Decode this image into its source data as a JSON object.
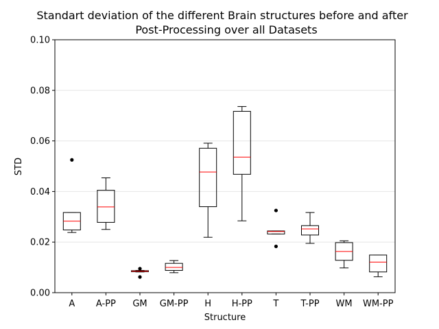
{
  "chart_data": {
    "type": "boxplot",
    "title_lines": [
      "Standart deviation of the different Brain structures before and after",
      "Post-Processing over all Datasets"
    ],
    "xlabel": "Structure",
    "ylabel": "STD",
    "ylim": [
      0.0,
      0.1
    ],
    "yticks": [
      0.0,
      0.02,
      0.04,
      0.06,
      0.08,
      0.1
    ],
    "ytick_labels": [
      "0.00",
      "0.02",
      "0.04",
      "0.06",
      "0.08",
      "0.10"
    ],
    "grid": "horizontal",
    "median_color": "#ff0000",
    "box_color": "#000000",
    "categories": [
      "A",
      "A-PP",
      "GM",
      "GM-PP",
      "H",
      "H-PP",
      "T",
      "T-PP",
      "WM",
      "WM-PP"
    ],
    "boxes": [
      {
        "label": "A",
        "whisker_low": 0.0238,
        "q1": 0.0248,
        "median": 0.0283,
        "q3": 0.0317,
        "whisker_high": 0.0317,
        "outliers": [
          0.0525
        ]
      },
      {
        "label": "A-PP",
        "whisker_low": 0.025,
        "q1": 0.0278,
        "median": 0.0339,
        "q3": 0.0405,
        "whisker_high": 0.0454,
        "outliers": []
      },
      {
        "label": "GM",
        "whisker_low": 0.0082,
        "q1": 0.0083,
        "median": 0.0085,
        "q3": 0.0087,
        "whisker_high": 0.0088,
        "outliers": [
          0.0095,
          0.0062
        ]
      },
      {
        "label": "GM-PP",
        "whisker_low": 0.0079,
        "q1": 0.0088,
        "median": 0.01,
        "q3": 0.0116,
        "whisker_high": 0.0127,
        "outliers": []
      },
      {
        "label": "H",
        "whisker_low": 0.0219,
        "q1": 0.034,
        "median": 0.0477,
        "q3": 0.0571,
        "whisker_high": 0.0591,
        "outliers": []
      },
      {
        "label": "H-PP",
        "whisker_low": 0.0284,
        "q1": 0.0468,
        "median": 0.0536,
        "q3": 0.0717,
        "whisker_high": 0.0736,
        "outliers": []
      },
      {
        "label": "T",
        "whisker_low": 0.0232,
        "q1": 0.0232,
        "median": 0.0242,
        "q3": 0.0244,
        "whisker_high": 0.0244,
        "outliers": [
          0.0325,
          0.0183
        ]
      },
      {
        "label": "T-PP",
        "whisker_low": 0.0195,
        "q1": 0.0228,
        "median": 0.0252,
        "q3": 0.0265,
        "whisker_high": 0.0317,
        "outliers": []
      },
      {
        "label": "WM",
        "whisker_low": 0.0098,
        "q1": 0.0128,
        "median": 0.0163,
        "q3": 0.0198,
        "whisker_high": 0.0205,
        "outliers": []
      },
      {
        "label": "WM-PP",
        "whisker_low": 0.0063,
        "q1": 0.0082,
        "median": 0.0121,
        "q3": 0.0149,
        "whisker_high": 0.0149,
        "outliers": []
      }
    ]
  }
}
